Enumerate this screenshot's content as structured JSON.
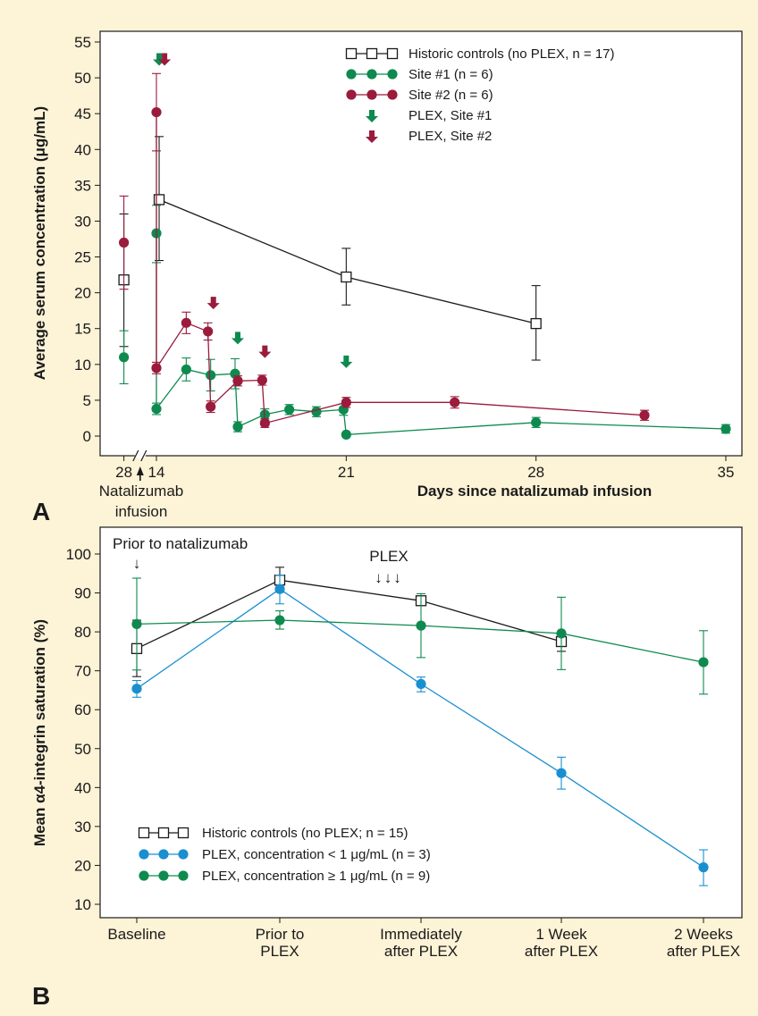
{
  "colors": {
    "background": "#fdf3d7",
    "plot_background": "#ffffff",
    "black": "#1a1a1a",
    "green": "#0f8a4f",
    "maroon": "#9a1b3c",
    "blue": "#1a8fd0",
    "panel_letter": "#2e9a4f"
  },
  "chart_data": [
    {
      "panel_letter": "A",
      "type": "line",
      "ylabel": "Average serum concentration (μg/mL)",
      "xlabel": "Days since natalizumab infusion",
      "x_tick_labels": [
        "28",
        "14",
        "21",
        "28",
        "35"
      ],
      "axis_break": true,
      "x_annotation": "Natalizumab infusion",
      "ylim": [
        0,
        55
      ],
      "yticks": [
        0,
        5,
        10,
        15,
        20,
        25,
        30,
        35,
        40,
        45,
        50,
        55
      ],
      "xlim": [
        12.5,
        35.5
      ],
      "xticks": [
        14,
        21,
        28,
        35
      ],
      "pre_infusion_x": 12.8,
      "legend_position": "top-right",
      "series": [
        {
          "name": "Historic controls (no PLEX, n = 17)",
          "marker": "square",
          "color": "#1a1a1a",
          "points": [
            {
              "x": 12.8,
              "y": 21.8,
              "low": 12.5,
              "high": 31.0,
              "pre": true
            },
            {
              "x": 14.1,
              "y": 33.0,
              "low": 24.5,
              "high": 41.8
            },
            {
              "x": 21.0,
              "y": 22.2,
              "low": 18.3,
              "high": 26.2
            },
            {
              "x": 28.0,
              "y": 15.7,
              "low": 10.6,
              "high": 21.0
            },
            {
              "x": 35.0,
              "y": null
            }
          ]
        },
        {
          "name": "Site #1 (n = 6)",
          "marker": "circle",
          "color": "#0f8a4f",
          "points": [
            {
              "x": 12.8,
              "y": 11.0,
              "low": 7.3,
              "high": 14.7,
              "pre": true
            },
            {
              "x": 14.0,
              "y": 28.3,
              "low": 24.2,
              "high": 32.2
            },
            {
              "x": 14.0,
              "y": 3.8,
              "low": 3.0,
              "high": 4.6
            },
            {
              "x": 15.1,
              "y": 9.3,
              "low": 7.7,
              "high": 10.9
            },
            {
              "x": 16.0,
              "y": 8.5,
              "low": 6.3,
              "high": 10.7
            },
            {
              "x": 16.9,
              "y": 8.7,
              "low": 6.6,
              "high": 10.8
            },
            {
              "x": 17.0,
              "y": 1.3,
              "low": 0.6,
              "high": 2.0
            },
            {
              "x": 18.0,
              "y": 3.0,
              "low": 2.2,
              "high": 3.8
            },
            {
              "x": 18.9,
              "y": 3.7,
              "low": 3.0,
              "high": 4.4
            },
            {
              "x": 19.9,
              "y": 3.4,
              "low": 2.7,
              "high": 4.1
            },
            {
              "x": 20.9,
              "y": 3.7,
              "low": 2.9,
              "high": 4.5
            },
            {
              "x": 21.0,
              "y": 0.2,
              "low": 0.0,
              "high": 0.4
            },
            {
              "x": 28.0,
              "y": 1.9,
              "low": 1.2,
              "high": 2.6
            },
            {
              "x": 35.0,
              "y": 1.0,
              "low": 0.4,
              "high": 1.6
            }
          ]
        },
        {
          "name": "Site #2 (n = 6)",
          "marker": "circle",
          "color": "#9a1b3c",
          "points": [
            {
              "x": 12.8,
              "y": 27.0,
              "low": 20.5,
              "high": 33.5,
              "pre": true
            },
            {
              "x": 14.0,
              "y": 45.2,
              "low": 39.8,
              "high": 50.6
            },
            {
              "x": 14.0,
              "y": 9.5,
              "low": 8.7,
              "high": 10.3
            },
            {
              "x": 15.1,
              "y": 15.8,
              "low": 14.3,
              "high": 17.3
            },
            {
              "x": 15.9,
              "y": 14.6,
              "low": 13.4,
              "high": 15.8
            },
            {
              "x": 16.0,
              "y": 4.1,
              "low": 3.3,
              "high": 4.9
            },
            {
              "x": 17.0,
              "y": 7.7,
              "low": 7.0,
              "high": 8.4
            },
            {
              "x": 17.9,
              "y": 7.8,
              "low": 7.1,
              "high": 8.5
            },
            {
              "x": 18.0,
              "y": 1.8,
              "low": 1.2,
              "high": 2.4
            },
            {
              "x": 21.0,
              "y": 4.7,
              "low": 4.0,
              "high": 5.4
            },
            {
              "x": 25.0,
              "y": 4.7,
              "low": 3.9,
              "high": 5.5
            },
            {
              "x": 32.0,
              "y": 2.9,
              "low": 2.2,
              "high": 3.6
            }
          ]
        }
      ],
      "plex_markers": [
        {
          "label": "PLEX, Site #1",
          "color": "#0f8a4f",
          "x": [
            14.1,
            17.0,
            21.0
          ],
          "y": [
            51.7,
            12.8,
            9.5
          ]
        },
        {
          "label": "PLEX, Site #2",
          "color": "#9a1b3c",
          "x": [
            14.3,
            16.1,
            18.0
          ],
          "y": [
            51.7,
            17.7,
            10.9
          ]
        }
      ]
    },
    {
      "panel_letter": "B",
      "type": "line",
      "ylabel": "Mean α4-integrin saturation (%)",
      "categories": [
        "Baseline",
        "Prior to PLEX",
        "Immediately after PLEX",
        "1 Week after PLEX",
        "2 Weeks after PLEX"
      ],
      "category_lines": [
        [
          "Baseline"
        ],
        [
          "Prior to",
          "PLEX"
        ],
        [
          "Immediately",
          "after PLEX"
        ],
        [
          "1 Week",
          "after PLEX"
        ],
        [
          "2 Weeks",
          "after PLEX"
        ]
      ],
      "ylim": [
        10,
        100
      ],
      "yticks": [
        10,
        20,
        30,
        40,
        50,
        60,
        70,
        80,
        90,
        100
      ],
      "legend_position": "bottom-left",
      "annotations": [
        {
          "text": "Prior to natalizumab",
          "arrow": "↓",
          "category_index": 0
        },
        {
          "text": "PLEX",
          "arrow": "↓↓↓",
          "between": [
            1,
            2
          ]
        }
      ],
      "series": [
        {
          "name": "Historic controls (no PLEX; n = 15)",
          "marker": "square",
          "color": "#1a1a1a",
          "values": [
            75.7,
            93.3,
            88.0,
            77.5,
            null
          ],
          "err_low": [
            68.5,
            90.2,
            87.0,
            75.0,
            null
          ],
          "err_high": [
            83.0,
            96.6,
            89.2,
            80.0,
            null
          ]
        },
        {
          "name": "PLEX, concentration < 1 μg/mL (n = 3)",
          "marker": "circle",
          "color": "#1a8fd0",
          "values": [
            65.4,
            91.0,
            66.6,
            43.7,
            19.5
          ],
          "err_low": [
            63.2,
            87.2,
            64.6,
            39.6,
            14.8
          ],
          "err_high": [
            67.5,
            94.6,
            68.4,
            47.8,
            24.0
          ]
        },
        {
          "name": "PLEX, concentration ≥ 1 μg/mL (n = 9)",
          "marker": "circle",
          "color": "#0f8a4f",
          "values": [
            82.0,
            83.0,
            81.6,
            79.6,
            72.2
          ],
          "err_low": [
            70.2,
            80.7,
            73.4,
            70.3,
            64.0
          ],
          "err_high": [
            93.8,
            85.4,
            89.8,
            88.9,
            80.3
          ]
        }
      ]
    }
  ]
}
